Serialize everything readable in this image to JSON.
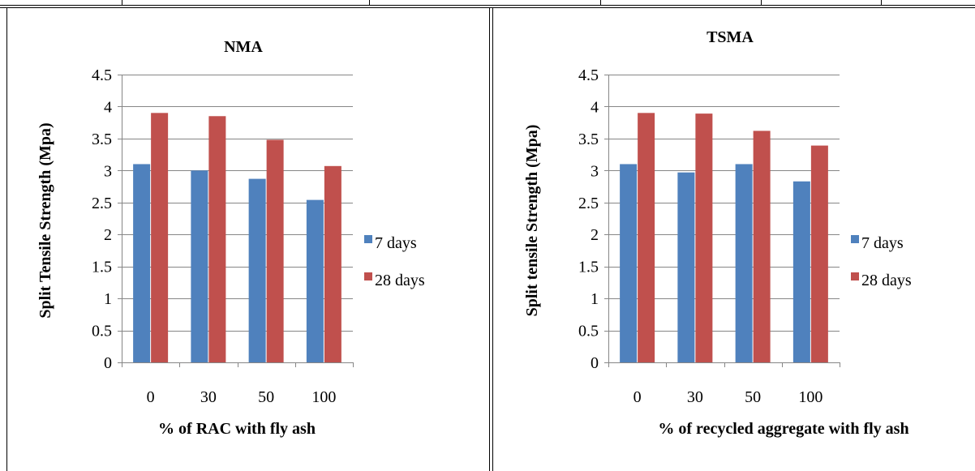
{
  "chart_data": [
    {
      "type": "bar",
      "title": "NMA",
      "xlabel": "% of RAC with fly ash",
      "ylabel": "Split Tensile Strength (Mpa)",
      "categories": [
        "0",
        "30",
        "50",
        "100"
      ],
      "ylim": [
        0,
        4.5
      ],
      "yticks": [
        "0",
        "0.5",
        "1",
        "1.5",
        "2",
        "2.5",
        "3",
        "3.5",
        "4",
        "4.5"
      ],
      "grid": true,
      "legend_position": "right",
      "series": [
        {
          "name": "7 days",
          "color": "#4F81BD",
          "values": [
            3.1,
            3.0,
            2.87,
            2.54
          ]
        },
        {
          "name": "28 days",
          "color": "#C0504D",
          "values": [
            3.9,
            3.85,
            3.48,
            3.07
          ]
        }
      ]
    },
    {
      "type": "bar",
      "title": "TSMA",
      "xlabel": "% of recycled aggregate with fly ash",
      "ylabel": "Split tensile Strength (Mpa)",
      "categories": [
        "0",
        "30",
        "50",
        "100"
      ],
      "ylim": [
        0,
        4.5
      ],
      "yticks": [
        "0",
        "0.5",
        "1",
        "1.5",
        "2",
        "2.5",
        "3",
        "3.5",
        "4",
        "4.5"
      ],
      "grid": true,
      "legend_position": "right",
      "series": [
        {
          "name": "7 days",
          "color": "#4F81BD",
          "values": [
            3.1,
            2.97,
            3.1,
            2.83
          ]
        },
        {
          "name": "28 days",
          "color": "#C0504D",
          "values": [
            3.9,
            3.89,
            3.62,
            3.39
          ]
        }
      ]
    }
  ]
}
